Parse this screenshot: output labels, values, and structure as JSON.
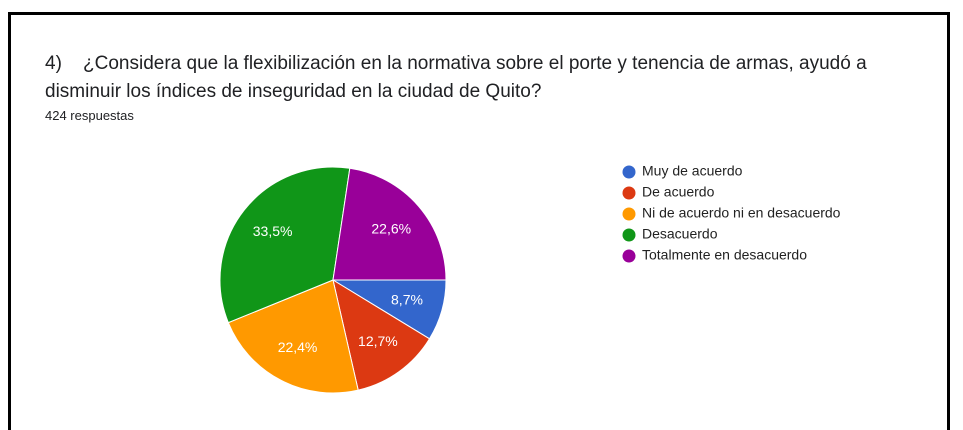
{
  "chart_data": {
    "type": "pie",
    "title": "4)    ¿Considera que la flexibilización en la normativa sobre el porte y tenencia de armas, ayudó a disminuir los índices de inseguridad en la ciudad de Quito?",
    "subtitle": "424 respuestas",
    "categories": [
      "Muy de acuerdo",
      "De acuerdo",
      "Ni de acuerdo ni en desacuerdo",
      "Desacuerdo",
      "Totalmente en desacuerdo"
    ],
    "values": [
      8.7,
      12.7,
      22.4,
      33.5,
      22.6
    ],
    "value_labels": [
      "8,7%",
      "12,7%",
      "22,4%",
      "33,5%",
      "22,6%"
    ],
    "colors": [
      "#3366cc",
      "#dc3912",
      "#ff9900",
      "#109618",
      "#990099"
    ],
    "legend": "right"
  }
}
